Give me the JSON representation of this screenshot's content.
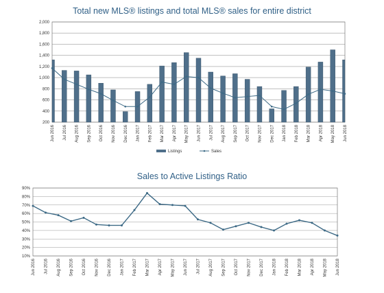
{
  "chart_data": [
    {
      "type": "bar",
      "title": "Total new MLS® listings and total MLS® sales for entire district",
      "xlabel": "",
      "ylabel": "",
      "ylim": [
        200,
        2000
      ],
      "yticks": [
        "200",
        "400",
        "600",
        "800",
        "1,000",
        "1,200",
        "1,400",
        "1,600",
        "1,800",
        "2,000"
      ],
      "grid": true,
      "legend_position": "bottom",
      "categories": [
        "Jun 2016",
        "Jul 2016",
        "Aug 2016",
        "Sep 2016",
        "Oct 2016",
        "Nov 2016",
        "Dec 2016",
        "Jan 2017",
        "Feb 2017",
        "Mar 2017",
        "Apr 2017",
        "May 2017",
        "Jun 2017",
        "Jul 2017",
        "Aug 2017",
        "Sep 2017",
        "Oct 2017",
        "Nov 2017",
        "Dec 2017",
        "Jan 2018",
        "Feb 2018",
        "Mar 2018",
        "Apr 2018",
        "May 2018",
        "Jun 2018"
      ],
      "series": [
        {
          "name": "Listings",
          "type": "bar",
          "color": "#4f6f8a",
          "values": [
            1320,
            1130,
            1120,
            1050,
            900,
            780,
            390,
            750,
            880,
            1210,
            1270,
            1450,
            1350,
            1100,
            1030,
            1070,
            970,
            840,
            440,
            770,
            840,
            1190,
            1280,
            1500,
            1320
          ]
        },
        {
          "name": "Sales",
          "type": "line",
          "color": "#3d6a86",
          "values": [
            1170,
            970,
            880,
            790,
            710,
            590,
            480,
            480,
            650,
            920,
            880,
            1020,
            1000,
            810,
            720,
            640,
            660,
            680,
            480,
            430,
            540,
            700,
            790,
            760,
            710
          ]
        }
      ]
    },
    {
      "type": "line",
      "title": "Sales to Active Listings Ratio",
      "xlabel": "",
      "ylabel": "",
      "ylim": [
        10,
        90
      ],
      "yticks": [
        "10%",
        "20%",
        "30%",
        "40%",
        "50%",
        "60%",
        "70%",
        "80%",
        "90%"
      ],
      "grid": true,
      "categories": [
        "Jun 2016",
        "Jul 2016",
        "Aug 2016",
        "Sep 2016",
        "Oct 2016",
        "Nov 2016",
        "Dec 2016",
        "Jan 2017",
        "Feb 2017",
        "Mar 2017",
        "Apr 2017",
        "May 2017",
        "Jun 2017",
        "Jul 2017",
        "Aug 2017",
        "Sep 2017",
        "Oct 2017",
        "Nov 2017",
        "Dec 2017",
        "Jan 2018",
        "Feb 2018",
        "Mar 2018",
        "Apr 2018",
        "May 2018",
        "Jun 2018"
      ],
      "series": [
        {
          "name": "",
          "color": "#3d6a86",
          "values": [
            69,
            61,
            58,
            51,
            55,
            47,
            46,
            46,
            64,
            84,
            71,
            70,
            69,
            53,
            49,
            41,
            45,
            49,
            44,
            40,
            48,
            52,
            49,
            40,
            34
          ]
        }
      ]
    }
  ]
}
